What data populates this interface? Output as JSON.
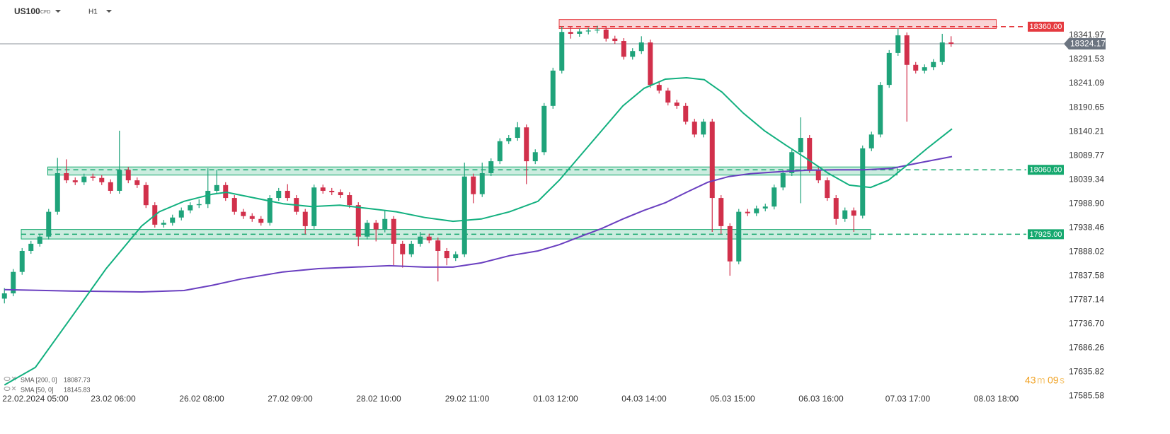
{
  "chart_data": {
    "type": "candlestick",
    "symbol": "US100",
    "instrument_type": "CFD",
    "timeframe": "H1",
    "up_color": "#1fa37a",
    "down_color": "#d1304b",
    "xlim": [
      -0.5,
      119.5
    ],
    "ylim": [
      17564,
      18416
    ],
    "yticks": [
      18341.97,
      18291.53,
      18241.09,
      18190.65,
      18140.21,
      18089.77,
      18039.34,
      {
        "value": 17988.9,
        "label": "17988.90"
      },
      17938.46,
      17888.02,
      17837.58,
      17787.14,
      {
        "value": 17736.7,
        "label": "17736.70"
      },
      17686.26,
      17635.82,
      17585.58
    ],
    "xticks": [
      {
        "value": 3.5,
        "label": "22.02.2024 05:00"
      },
      {
        "value": 12.3,
        "label": "23.02 06:00"
      },
      {
        "value": 22.3,
        "label": "26.02 08:00"
      },
      {
        "value": 32.3,
        "label": "27.02 09:00"
      },
      {
        "value": 42.3,
        "label": "28.02 10:00"
      },
      {
        "value": 52.3,
        "label": "29.02 11:00"
      },
      {
        "value": 62.3,
        "label": "01.03 12:00"
      },
      {
        "value": 72.3,
        "label": "04.03 14:00"
      },
      {
        "value": 82.3,
        "label": "05.03 15:00"
      },
      {
        "value": 92.3,
        "label": "06.03 16:00"
      },
      {
        "value": 102.1,
        "label": "07.03 17:00"
      },
      {
        "value": 112.1,
        "label": "08.03 18:00"
      }
    ],
    "ohlc": [
      [
        17790,
        17812,
        17780,
        17801
      ],
      [
        17801,
        17852,
        17795,
        17846
      ],
      [
        17846,
        17896,
        17840,
        17890
      ],
      [
        17890,
        17911,
        17884,
        17905
      ],
      [
        17905,
        17926,
        17899,
        17920
      ],
      [
        17920,
        17978,
        17914,
        17972
      ],
      [
        17972,
        18085,
        17966,
        18053
      ],
      [
        18053,
        18082,
        18032,
        18038
      ],
      [
        18038,
        18044,
        18028,
        18034
      ],
      [
        18034,
        18052,
        18028,
        18046
      ],
      [
        18046,
        18052,
        18037,
        18043
      ],
      [
        18043,
        18049,
        18028,
        18034
      ],
      [
        18034,
        18040,
        18010,
        18016
      ],
      [
        18016,
        18142,
        18010,
        18060
      ],
      [
        18060,
        18066,
        18032,
        18038
      ],
      [
        18038,
        18044,
        18022,
        18028
      ],
      [
        18028,
        18034,
        17980,
        17986
      ],
      [
        17986,
        17992,
        17939,
        17945
      ],
      [
        17945,
        17955,
        17939,
        17949
      ],
      [
        17949,
        17966,
        17943,
        17960
      ],
      [
        17960,
        17981,
        17954,
        17975
      ],
      [
        17975,
        17992,
        17969,
        17986
      ],
      [
        17986,
        17998,
        17980,
        17988
      ],
      [
        17988,
        18063,
        17980,
        18016
      ],
      [
        18016,
        18060,
        18010,
        18028
      ],
      [
        18028,
        18034,
        17995,
        18001
      ],
      [
        18001,
        18007,
        17966,
        17972
      ],
      [
        17972,
        17978,
        17957,
        17963
      ],
      [
        17963,
        17969,
        17951,
        17957
      ],
      [
        17957,
        17963,
        17943,
        17949
      ],
      [
        17949,
        18007,
        17943,
        18001
      ],
      [
        18001,
        18022,
        17995,
        18016
      ],
      [
        18016,
        18030,
        17995,
        18001
      ],
      [
        18001,
        18007,
        17966,
        17972
      ],
      [
        17972,
        17978,
        17925,
        17942
      ],
      [
        17942,
        18029,
        17936,
        18023
      ],
      [
        18023,
        18029,
        18010,
        18016
      ],
      [
        18016,
        18022,
        18007,
        18013
      ],
      [
        18013,
        18019,
        18001,
        18007
      ],
      [
        18007,
        18013,
        17980,
        17986
      ],
      [
        17986,
        17992,
        17900,
        17920
      ],
      [
        17920,
        17955,
        17914,
        17949
      ],
      [
        17949,
        17955,
        17910,
        17935
      ],
      [
        17935,
        17975,
        17929,
        17957
      ],
      [
        17957,
        17963,
        17860,
        17905
      ],
      [
        17905,
        17911,
        17855,
        17883
      ],
      [
        17883,
        17911,
        17877,
        17905
      ],
      [
        17905,
        17930,
        17899,
        17920
      ],
      [
        17920,
        17926,
        17906,
        17912
      ],
      [
        17912,
        17918,
        17826,
        17890
      ],
      [
        17890,
        17896,
        17860,
        17875
      ],
      [
        17875,
        17889,
        17869,
        17883
      ],
      [
        17883,
        18075,
        17877,
        18046
      ],
      [
        18046,
        18052,
        17990,
        18009
      ],
      [
        18009,
        18075,
        18003,
        18053
      ],
      [
        18053,
        18084,
        18047,
        18078
      ],
      [
        18078,
        18126,
        18072,
        18120
      ],
      [
        18120,
        18133,
        18114,
        18127
      ],
      [
        18127,
        18160,
        18121,
        18149
      ],
      [
        18149,
        18155,
        18030,
        18078
      ],
      [
        18078,
        18103,
        18072,
        18097
      ],
      [
        18097,
        18200,
        18091,
        18194
      ],
      [
        18194,
        18274,
        18188,
        18268
      ],
      [
        18268,
        18360,
        18262,
        18349
      ],
      [
        18349,
        18360,
        18335,
        18345
      ],
      [
        18345,
        18356,
        18339,
        18350
      ],
      [
        18350,
        18358,
        18344,
        18352
      ],
      [
        18352,
        18362,
        18346,
        18354
      ],
      [
        18354,
        18360,
        18329,
        18335
      ],
      [
        18335,
        18341,
        18324,
        18330
      ],
      [
        18330,
        18336,
        18291,
        18297
      ],
      [
        18297,
        18315,
        18291,
        18309
      ],
      [
        18309,
        18340,
        18303,
        18327
      ],
      [
        18327,
        18333,
        18232,
        18238
      ],
      [
        18238,
        18244,
        18220,
        18226
      ],
      [
        18226,
        18232,
        18195,
        18201
      ],
      [
        18201,
        18207,
        18188,
        18194
      ],
      [
        18194,
        18200,
        18155,
        18161
      ],
      [
        18161,
        18167,
        18128,
        18134
      ],
      [
        18134,
        18167,
        18128,
        18161
      ],
      [
        18161,
        18167,
        17930,
        18001
      ],
      [
        18001,
        18007,
        17925,
        17942
      ],
      [
        17942,
        17948,
        17838,
        17868
      ],
      [
        17868,
        17978,
        17862,
        17972
      ],
      [
        17972,
        17978,
        17963,
        17969
      ],
      [
        17969,
        17985,
        17963,
        17979
      ],
      [
        17979,
        17989,
        17973,
        17983
      ],
      [
        17983,
        18029,
        17977,
        18023
      ],
      [
        18023,
        18059,
        18017,
        18053
      ],
      [
        18053,
        18103,
        18047,
        18097
      ],
      [
        18097,
        18170,
        17990,
        18127
      ],
      [
        18127,
        18133,
        18054,
        18060
      ],
      [
        18060,
        18066,
        18032,
        18038
      ],
      [
        18038,
        18044,
        17995,
        18001
      ],
      [
        18001,
        18007,
        17945,
        17957
      ],
      [
        17957,
        17981,
        17951,
        17975
      ],
      [
        17975,
        17981,
        17930,
        17964
      ],
      [
        17964,
        18111,
        17958,
        18105
      ],
      [
        18105,
        18140,
        18099,
        18134
      ],
      [
        18134,
        18244,
        18128,
        18238
      ],
      [
        18238,
        18311,
        18232,
        18305
      ],
      [
        18305,
        18356,
        18299,
        18342
      ],
      [
        18342,
        18348,
        18161,
        18280
      ],
      [
        18280,
        18286,
        18262,
        18268
      ],
      [
        18268,
        18281,
        18262,
        18275
      ],
      [
        18275,
        18292,
        18269,
        18286
      ],
      [
        18286,
        18345,
        18280,
        18327
      ],
      [
        18327,
        18340,
        18318,
        18324.17
      ]
    ],
    "series": [
      {
        "name": "SMA [200, 0]",
        "color": "#6a3fc0",
        "x": [
          0,
          7.5,
          15.5,
          20.3,
          23.5,
          26.7,
          31.5,
          35.5,
          39.5,
          43.5,
          47.5,
          50.7,
          53.9,
          57.1,
          60.3,
          62.7,
          65.1,
          67.5,
          69.9,
          72.3,
          74.7,
          77.1,
          79.5,
          81.9,
          84.3,
          87.5,
          90.7,
          93.9,
          97.1,
          100.3,
          103.5,
          107.1
        ],
        "values": [
          17809,
          17806,
          17804,
          17807,
          17818,
          17831,
          17846,
          17853,
          17856,
          17859,
          17856,
          17856,
          17865,
          17880,
          17890,
          17903,
          17920,
          17937,
          17957,
          17975,
          17991,
          18013,
          18034,
          18046,
          18052,
          18056,
          18059,
          18060,
          18060,
          18063,
          18075,
          18087.73
        ]
      },
      {
        "name": "SMA [50, 0]",
        "color": "#12b07f",
        "x": [
          0,
          3.5,
          7.5,
          11.5,
          15.5,
          17.5,
          20.3,
          23.5,
          25.1,
          28.3,
          31.5,
          34.7,
          37.9,
          41.1,
          44.3,
          47.5,
          50.7,
          53.9,
          57.1,
          60.3,
          62.7,
          65.1,
          67.5,
          69.9,
          72.3,
          74.7,
          77.1,
          79.1,
          81.1,
          83.5,
          85.9,
          88.3,
          90.7,
          93.1,
          95.5,
          97.9,
          99.9,
          101.9,
          104.3,
          107.1
        ],
        "values": [
          17609,
          17646,
          17749,
          17853,
          17942,
          17972,
          17994,
          18009,
          18013,
          18001,
          17989,
          17983,
          17986,
          17979,
          17972,
          17960,
          17952,
          17957,
          17972,
          17994,
          18038,
          18090,
          18142,
          18194,
          18231,
          18250,
          18253,
          18249,
          18223,
          18179,
          18142,
          18112,
          18083,
          18053,
          18028,
          18023,
          18038,
          18068,
          18105,
          18145.83
        ]
      }
    ],
    "levels": [
      {
        "value": 18360,
        "label": "18360.00",
        "color": "#e53a3f",
        "zone": [
          18356,
          18375
        ],
        "zone_x": [
          62.7,
          112.1
        ]
      },
      {
        "value": 18060,
        "label": "18060.00",
        "color": "#14a86e",
        "zone": [
          18049,
          18066
        ],
        "zone_x": [
          4.9,
          100.9
        ]
      },
      {
        "value": 17925,
        "label": "17925.00",
        "color": "#14a86e",
        "zone": [
          17915,
          17935
        ],
        "zone_x": [
          1.9,
          97.9
        ]
      }
    ],
    "last_price": 18324.17,
    "countdown": {
      "minutes": "43",
      "minutes_unit": "m",
      "seconds": "09",
      "seconds_unit": "s"
    }
  }
}
